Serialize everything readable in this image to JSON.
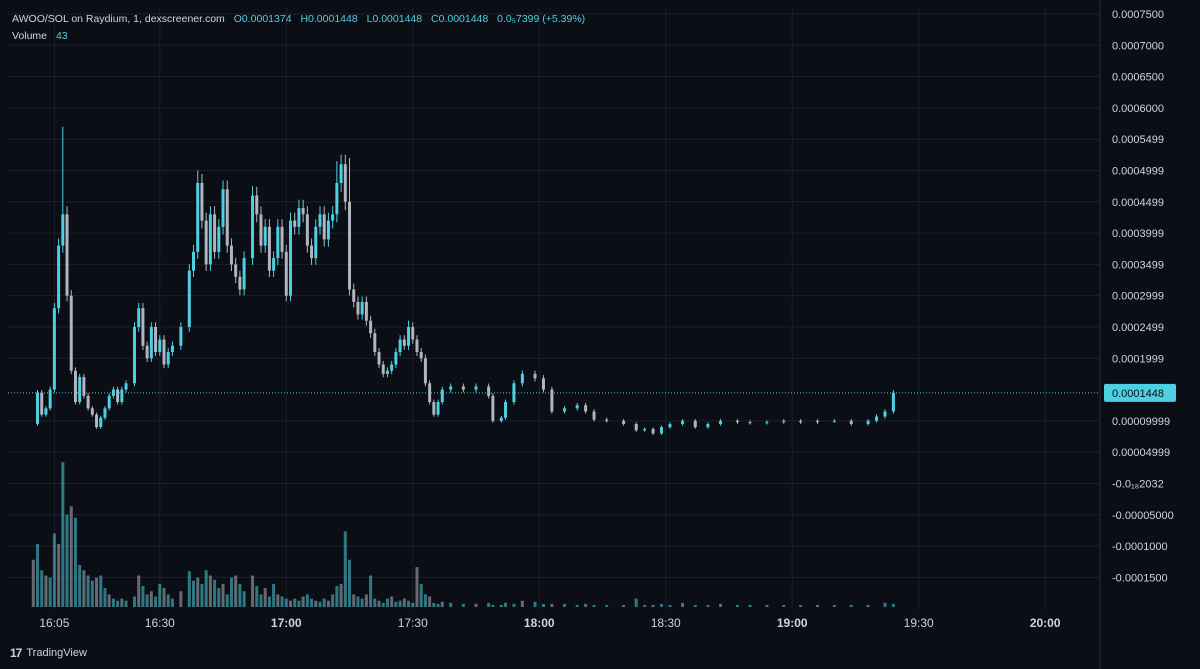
{
  "legend": {
    "symbol": "AWOO/SOL on Raydium, 1, dexscreener.com",
    "open": "O0.0001374",
    "high": "H0.0001448",
    "low": "L0.0001448",
    "close": "C0.0001448",
    "change": "0.0₅7399 (+5.39%)",
    "volume_label": "Volume",
    "volume_value": "43"
  },
  "brand": {
    "name": "TradingView",
    "logo_text": "17"
  },
  "colors": {
    "up": "#4dd0e1",
    "down": "#b2b5be",
    "background": "#0b0e14",
    "grid": "#1c2030",
    "price_line": "#4dd0e1"
  },
  "chart_data": {
    "type": "candlestick",
    "last_price_label": "0.0001448",
    "last_price": 0.0001448,
    "ylim": [
      -0.000175,
      0.00075
    ],
    "y_ticks": [
      {
        "v": 0.00075,
        "label": "0.0007500"
      },
      {
        "v": 0.0007,
        "label": "0.0007000"
      },
      {
        "v": 0.00065,
        "label": "0.0006500"
      },
      {
        "v": 0.0006,
        "label": "0.0006000"
      },
      {
        "v": 0.00055,
        "label": "0.0005499"
      },
      {
        "v": 0.0005,
        "label": "0.0004999"
      },
      {
        "v": 0.00045,
        "label": "0.0004499"
      },
      {
        "v": 0.0004,
        "label": "0.0003999"
      },
      {
        "v": 0.00035,
        "label": "0.0003499"
      },
      {
        "v": 0.0003,
        "label": "0.0002999"
      },
      {
        "v": 0.00025,
        "label": "0.0002499"
      },
      {
        "v": 0.0002,
        "label": "0.0001999"
      },
      {
        "v": 0.0001,
        "label": "0.00009999"
      },
      {
        "v": 5e-05,
        "label": "0.00004999"
      },
      {
        "v": 0.0,
        "label": "-0.0₁₈2032"
      },
      {
        "v": -5e-05,
        "label": "-0.00005000"
      },
      {
        "v": -0.0001,
        "label": "-0.0001000"
      },
      {
        "v": -0.00015,
        "label": "-0.0001500"
      }
    ],
    "x_ticks": [
      {
        "t": 5,
        "label": "16:05",
        "bold": false
      },
      {
        "t": 30,
        "label": "16:30",
        "bold": false
      },
      {
        "t": 60,
        "label": "17:00",
        "bold": true
      },
      {
        "t": 90,
        "label": "17:30",
        "bold": false
      },
      {
        "t": 120,
        "label": "18:00",
        "bold": true
      },
      {
        "t": 150,
        "label": "18:30",
        "bold": false
      },
      {
        "t": 180,
        "label": "19:00",
        "bold": true
      },
      {
        "t": 210,
        "label": "19:30",
        "bold": false
      },
      {
        "t": 240,
        "label": "20:00",
        "bold": true
      }
    ],
    "x_domain_minutes_from_1600": [
      -6,
      253
    ],
    "series_close_path": [
      [
        0,
        9.5e-05
      ],
      [
        1,
        0.000145
      ],
      [
        2,
        0.00011
      ],
      [
        3,
        0.00012
      ],
      [
        4,
        0.00015
      ],
      [
        5,
        0.00028
      ],
      [
        6,
        0.00038
      ],
      [
        7,
        0.00043
      ],
      [
        8,
        0.0003
      ],
      [
        9,
        0.00018
      ],
      [
        10,
        0.00013
      ],
      [
        11,
        0.00017
      ],
      [
        12,
        0.00014
      ],
      [
        13,
        0.00012
      ],
      [
        14,
        0.00011
      ],
      [
        15,
        9e-05
      ],
      [
        16,
        0.000105
      ],
      [
        17,
        0.00012
      ],
      [
        18,
        0.00014
      ],
      [
        19,
        0.00015
      ],
      [
        20,
        0.00013
      ],
      [
        21,
        0.00015
      ],
      [
        22,
        0.00016
      ],
      [
        24,
        0.00025
      ],
      [
        25,
        0.00028
      ],
      [
        26,
        0.00022
      ],
      [
        27,
        0.0002
      ],
      [
        28,
        0.00025
      ],
      [
        29,
        0.00021
      ],
      [
        30,
        0.00023
      ],
      [
        31,
        0.00019
      ],
      [
        32,
        0.00021
      ],
      [
        33,
        0.00022
      ],
      [
        35,
        0.00025
      ],
      [
        37,
        0.00034
      ],
      [
        38,
        0.00037
      ],
      [
        39,
        0.00048
      ],
      [
        40,
        0.00042
      ],
      [
        41,
        0.00035
      ],
      [
        42,
        0.00043
      ],
      [
        43,
        0.00037
      ],
      [
        44,
        0.00041
      ],
      [
        45,
        0.00047
      ],
      [
        46,
        0.00038
      ],
      [
        47,
        0.00035
      ],
      [
        48,
        0.00033
      ],
      [
        49,
        0.00031
      ],
      [
        50,
        0.00036
      ],
      [
        52,
        0.00046
      ],
      [
        53,
        0.00043
      ],
      [
        54,
        0.00038
      ],
      [
        55,
        0.00041
      ],
      [
        56,
        0.00034
      ],
      [
        57,
        0.00036
      ],
      [
        58,
        0.00041
      ],
      [
        59,
        0.00037
      ],
      [
        60,
        0.0003
      ],
      [
        61,
        0.00042
      ],
      [
        62,
        0.00041
      ],
      [
        63,
        0.00044
      ],
      [
        64,
        0.00043
      ],
      [
        65,
        0.00038
      ],
      [
        66,
        0.00036
      ],
      [
        67,
        0.00041
      ],
      [
        68,
        0.00043
      ],
      [
        69,
        0.00039
      ],
      [
        70,
        0.00042
      ],
      [
        71,
        0.00043
      ],
      [
        72,
        0.00048
      ],
      [
        73,
        0.00051
      ],
      [
        74,
        0.00045
      ],
      [
        75,
        0.00031
      ],
      [
        76,
        0.00029
      ],
      [
        77,
        0.00027
      ],
      [
        78,
        0.00029
      ],
      [
        79,
        0.00026
      ],
      [
        80,
        0.00024
      ],
      [
        81,
        0.00021
      ],
      [
        82,
        0.00019
      ],
      [
        83,
        0.000175
      ],
      [
        84,
        0.00018
      ],
      [
        85,
        0.00019
      ],
      [
        86,
        0.00021
      ],
      [
        87,
        0.00023
      ],
      [
        88,
        0.00022
      ],
      [
        89,
        0.00025
      ],
      [
        90,
        0.00023
      ],
      [
        91,
        0.00021
      ],
      [
        92,
        0.0002
      ],
      [
        93,
        0.00016
      ],
      [
        94,
        0.00013
      ],
      [
        95,
        0.00011
      ],
      [
        96,
        0.00013
      ],
      [
        97,
        0.00015
      ],
      [
        99,
        0.000155
      ],
      [
        102,
        0.00015
      ],
      [
        105,
        0.000155
      ],
      [
        108,
        0.00014
      ],
      [
        109,
        0.0001
      ],
      [
        111,
        0.000105
      ],
      [
        112,
        0.00013
      ],
      [
        114,
        0.00016
      ],
      [
        116,
        0.000175
      ],
      [
        119,
        0.000168
      ],
      [
        121,
        0.00015
      ],
      [
        123,
        0.000115
      ],
      [
        126,
        0.00012
      ],
      [
        129,
        0.000125
      ],
      [
        131,
        0.000115
      ],
      [
        133,
        0.000102
      ],
      [
        136,
        0.0001
      ],
      [
        140,
        9.5e-05
      ],
      [
        143,
        8.5e-05
      ],
      [
        145,
        8.7e-05
      ],
      [
        147,
        8e-05
      ],
      [
        149,
        9e-05
      ],
      [
        151,
        9.5e-05
      ],
      [
        154,
        0.0001
      ],
      [
        157,
        9e-05
      ],
      [
        160,
        9.5e-05
      ],
      [
        163,
        0.0001
      ],
      [
        167,
        9.8e-05
      ],
      [
        170,
        9.7e-05
      ],
      [
        174,
        9.8e-05
      ],
      [
        178,
        0.0001
      ],
      [
        182,
        9.8e-05
      ],
      [
        186,
        0.0001
      ],
      [
        190,
        0.0001
      ],
      [
        194,
        9.5e-05
      ],
      [
        198,
        0.0001
      ],
      [
        200,
        0.000107
      ],
      [
        202,
        0.000115
      ],
      [
        204,
        0.000145
      ]
    ],
    "spike_wicks": [
      {
        "t": 7,
        "high": 0.00057
      },
      {
        "t": 75,
        "high": 0.00052
      },
      {
        "t": 72,
        "high": 0.000515
      },
      {
        "t": 39,
        "high": 0.0005
      },
      {
        "t": 52,
        "high": 0.000475
      },
      {
        "t": 89,
        "high": 0.00026
      }
    ],
    "volume_samples": [
      [
        0,
        45
      ],
      [
        1,
        60
      ],
      [
        2,
        35
      ],
      [
        3,
        30
      ],
      [
        4,
        28
      ],
      [
        5,
        70
      ],
      [
        6,
        60
      ],
      [
        7,
        138
      ],
      [
        8,
        88
      ],
      [
        9,
        96
      ],
      [
        10,
        85
      ],
      [
        11,
        40
      ],
      [
        12,
        35
      ],
      [
        13,
        30
      ],
      [
        14,
        25
      ],
      [
        15,
        28
      ],
      [
        16,
        30
      ],
      [
        17,
        18
      ],
      [
        18,
        12
      ],
      [
        19,
        8
      ],
      [
        20,
        6
      ],
      [
        21,
        8
      ],
      [
        22,
        6
      ],
      [
        24,
        10
      ],
      [
        25,
        30
      ],
      [
        26,
        20
      ],
      [
        27,
        12
      ],
      [
        28,
        15
      ],
      [
        29,
        10
      ],
      [
        30,
        22
      ],
      [
        31,
        18
      ],
      [
        32,
        12
      ],
      [
        33,
        8
      ],
      [
        35,
        15
      ],
      [
        37,
        34
      ],
      [
        38,
        25
      ],
      [
        39,
        28
      ],
      [
        40,
        22
      ],
      [
        41,
        35
      ],
      [
        42,
        30
      ],
      [
        43,
        26
      ],
      [
        44,
        18
      ],
      [
        45,
        22
      ],
      [
        46,
        12
      ],
      [
        47,
        28
      ],
      [
        48,
        30
      ],
      [
        49,
        22
      ],
      [
        50,
        15
      ],
      [
        52,
        30
      ],
      [
        53,
        20
      ],
      [
        54,
        12
      ],
      [
        55,
        18
      ],
      [
        56,
        10
      ],
      [
        57,
        22
      ],
      [
        58,
        12
      ],
      [
        59,
        10
      ],
      [
        60,
        8
      ],
      [
        61,
        6
      ],
      [
        62,
        8
      ],
      [
        63,
        6
      ],
      [
        64,
        10
      ],
      [
        65,
        12
      ],
      [
        66,
        8
      ],
      [
        67,
        6
      ],
      [
        68,
        5
      ],
      [
        69,
        8
      ],
      [
        70,
        6
      ],
      [
        71,
        12
      ],
      [
        72,
        20
      ],
      [
        73,
        22
      ],
      [
        74,
        72
      ],
      [
        75,
        45
      ],
      [
        76,
        12
      ],
      [
        77,
        10
      ],
      [
        78,
        8
      ],
      [
        79,
        12
      ],
      [
        80,
        30
      ],
      [
        81,
        8
      ],
      [
        82,
        6
      ],
      [
        83,
        4
      ],
      [
        84,
        8
      ],
      [
        85,
        10
      ],
      [
        86,
        5
      ],
      [
        87,
        6
      ],
      [
        88,
        8
      ],
      [
        89,
        6
      ],
      [
        90,
        4
      ],
      [
        91,
        38
      ],
      [
        92,
        22
      ],
      [
        93,
        12
      ],
      [
        94,
        10
      ],
      [
        95,
        4
      ],
      [
        96,
        3
      ],
      [
        97,
        5
      ],
      [
        99,
        4
      ],
      [
        102,
        3
      ],
      [
        105,
        3
      ],
      [
        108,
        4
      ],
      [
        109,
        2
      ],
      [
        111,
        2
      ],
      [
        112,
        4
      ],
      [
        114,
        3
      ],
      [
        116,
        6
      ],
      [
        119,
        5
      ],
      [
        121,
        3
      ],
      [
        123,
        3
      ],
      [
        126,
        3
      ],
      [
        129,
        2
      ],
      [
        131,
        3
      ],
      [
        133,
        2
      ],
      [
        136,
        2
      ],
      [
        140,
        2
      ],
      [
        143,
        8
      ],
      [
        145,
        2
      ],
      [
        147,
        2
      ],
      [
        149,
        3
      ],
      [
        151,
        2
      ],
      [
        154,
        4
      ],
      [
        157,
        2
      ],
      [
        160,
        2
      ],
      [
        163,
        3
      ],
      [
        167,
        2
      ],
      [
        170,
        2
      ],
      [
        174,
        2
      ],
      [
        178,
        2
      ],
      [
        182,
        2
      ],
      [
        186,
        2
      ],
      [
        190,
        2
      ],
      [
        194,
        2
      ],
      [
        198,
        2
      ],
      [
        202,
        4
      ],
      [
        204,
        3
      ]
    ]
  }
}
